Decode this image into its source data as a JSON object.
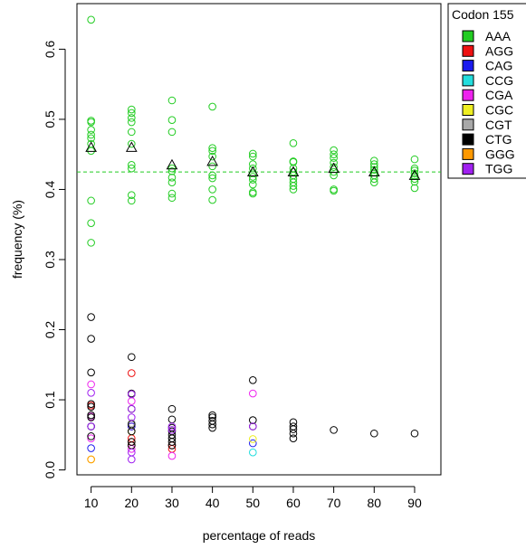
{
  "chart_data": {
    "type": "scatter",
    "xlabel": "percentage of reads",
    "ylabel": "frequency (%)",
    "xlim": [
      6.5,
      96.5
    ],
    "ylim": [
      -0.007,
      0.665
    ],
    "x_ticks": [
      10,
      20,
      30,
      40,
      50,
      60,
      70,
      80,
      90
    ],
    "y_ticks": [
      0.0,
      0.1,
      0.2,
      0.3,
      0.4,
      0.5,
      0.6
    ],
    "y_tick_labels": [
      "0.0",
      "0.1",
      "0.2",
      "0.3",
      "0.4",
      "0.5",
      "0.6"
    ],
    "grid": false,
    "legend": {
      "title": "Codon 155",
      "placement": "top-right-outside",
      "entries": [
        {
          "label": "AAA",
          "color": "#22cc22"
        },
        {
          "label": "AGG",
          "color": "#ee1111"
        },
        {
          "label": "CAG",
          "color": "#1a1aee"
        },
        {
          "label": "CCG",
          "color": "#22dddd"
        },
        {
          "label": "CGA",
          "color": "#ee22ee"
        },
        {
          "label": "CGC",
          "color": "#eeee22"
        },
        {
          "label": "CGT",
          "color": "#a8a8a8"
        },
        {
          "label": "CTG",
          "color": "#000000"
        },
        {
          "label": "GGG",
          "color": "#ff9900"
        },
        {
          "label": "TGG",
          "color": "#a020f0"
        }
      ]
    },
    "reference_line": {
      "y": 0.425,
      "color": "#22cc22",
      "style": "dashed"
    },
    "series": [
      {
        "name": "AAA",
        "color": "#22cc22",
        "points": [
          [
            10,
            0.642
          ],
          [
            10,
            0.498
          ],
          [
            10,
            0.496
          ],
          [
            10,
            0.485
          ],
          [
            10,
            0.478
          ],
          [
            10,
            0.473
          ],
          [
            10,
            0.465
          ],
          [
            10,
            0.455
          ],
          [
            10,
            0.384
          ],
          [
            10,
            0.352
          ],
          [
            10,
            0.324
          ],
          [
            20,
            0.514
          ],
          [
            20,
            0.509
          ],
          [
            20,
            0.502
          ],
          [
            20,
            0.496
          ],
          [
            20,
            0.482
          ],
          [
            20,
            0.465
          ],
          [
            20,
            0.435
          ],
          [
            20,
            0.43
          ],
          [
            20,
            0.392
          ],
          [
            20,
            0.384
          ],
          [
            30,
            0.527
          ],
          [
            30,
            0.499
          ],
          [
            30,
            0.482
          ],
          [
            30,
            0.43
          ],
          [
            30,
            0.426
          ],
          [
            30,
            0.417
          ],
          [
            30,
            0.41
          ],
          [
            30,
            0.394
          ],
          [
            30,
            0.388
          ],
          [
            40,
            0.518
          ],
          [
            40,
            0.459
          ],
          [
            40,
            0.455
          ],
          [
            40,
            0.447
          ],
          [
            40,
            0.433
          ],
          [
            40,
            0.42
          ],
          [
            40,
            0.416
          ],
          [
            40,
            0.4
          ],
          [
            40,
            0.385
          ],
          [
            50,
            0.451
          ],
          [
            50,
            0.447
          ],
          [
            50,
            0.436
          ],
          [
            50,
            0.43
          ],
          [
            50,
            0.423
          ],
          [
            50,
            0.418
          ],
          [
            50,
            0.414
          ],
          [
            50,
            0.407
          ],
          [
            50,
            0.396
          ],
          [
            50,
            0.394
          ],
          [
            60,
            0.466
          ],
          [
            60,
            0.44
          ],
          [
            60,
            0.439
          ],
          [
            60,
            0.43
          ],
          [
            60,
            0.425
          ],
          [
            60,
            0.42
          ],
          [
            60,
            0.415
          ],
          [
            60,
            0.41
          ],
          [
            60,
            0.405
          ],
          [
            60,
            0.4
          ],
          [
            70,
            0.456
          ],
          [
            70,
            0.45
          ],
          [
            70,
            0.445
          ],
          [
            70,
            0.438
          ],
          [
            70,
            0.432
          ],
          [
            70,
            0.425
          ],
          [
            70,
            0.42
          ],
          [
            70,
            0.4
          ],
          [
            70,
            0.398
          ],
          [
            80,
            0.441
          ],
          [
            80,
            0.436
          ],
          [
            80,
            0.432
          ],
          [
            80,
            0.428
          ],
          [
            80,
            0.424
          ],
          [
            80,
            0.42
          ],
          [
            80,
            0.415
          ],
          [
            80,
            0.41
          ],
          [
            90,
            0.443
          ],
          [
            90,
            0.43
          ],
          [
            90,
            0.427
          ],
          [
            90,
            0.423
          ],
          [
            90,
            0.419
          ],
          [
            90,
            0.415
          ],
          [
            90,
            0.411
          ],
          [
            90,
            0.402
          ]
        ]
      },
      {
        "name": "AGG",
        "color": "#ee1111",
        "points": [
          [
            10,
            0.092
          ],
          [
            20,
            0.138
          ],
          [
            20,
            0.062
          ],
          [
            20,
            0.045
          ],
          [
            20,
            0.04
          ],
          [
            20,
            0.035
          ],
          [
            30,
            0.035
          ],
          [
            30,
            0.03
          ]
        ]
      },
      {
        "name": "CAG",
        "color": "#1a1aee",
        "points": [
          [
            10,
            0.062
          ],
          [
            10,
            0.031
          ],
          [
            20,
            0.062
          ],
          [
            50,
            0.038
          ]
        ]
      },
      {
        "name": "CCG",
        "color": "#22dddd",
        "points": [
          [
            50,
            0.025
          ]
        ]
      },
      {
        "name": "CGA",
        "color": "#ee22ee",
        "points": [
          [
            10,
            0.122
          ],
          [
            10,
            0.076
          ],
          [
            10,
            0.045
          ],
          [
            20,
            0.098
          ],
          [
            20,
            0.03
          ],
          [
            30,
            0.02
          ],
          [
            50,
            0.109
          ]
        ]
      },
      {
        "name": "CGC",
        "color": "#eeee22",
        "points": [
          [
            10,
            0.015
          ],
          [
            20,
            0.055
          ],
          [
            50,
            0.044
          ]
        ]
      },
      {
        "name": "CGT",
        "color": "#a8a8a8",
        "points": [
          [
            10,
            0.078
          ],
          [
            20,
            0.067
          ],
          [
            30,
            0.045
          ],
          [
            50,
            0.071
          ]
        ]
      },
      {
        "name": "CTG",
        "color": "#000000",
        "points": [
          [
            10,
            0.218
          ],
          [
            10,
            0.187
          ],
          [
            10,
            0.139
          ],
          [
            10,
            0.094
          ],
          [
            10,
            0.09
          ],
          [
            10,
            0.078
          ],
          [
            10,
            0.075
          ],
          [
            10,
            0.062
          ],
          [
            10,
            0.048
          ],
          [
            20,
            0.161
          ],
          [
            20,
            0.109
          ],
          [
            20,
            0.108
          ],
          [
            20,
            0.087
          ],
          [
            20,
            0.065
          ],
          [
            20,
            0.055
          ],
          [
            20,
            0.04
          ],
          [
            20,
            0.035
          ],
          [
            30,
            0.087
          ],
          [
            30,
            0.072
          ],
          [
            30,
            0.06
          ],
          [
            30,
            0.055
          ],
          [
            30,
            0.05
          ],
          [
            30,
            0.045
          ],
          [
            30,
            0.04
          ],
          [
            30,
            0.035
          ],
          [
            40,
            0.078
          ],
          [
            40,
            0.075
          ],
          [
            40,
            0.07
          ],
          [
            40,
            0.065
          ],
          [
            40,
            0.06
          ],
          [
            50,
            0.128
          ],
          [
            50,
            0.071
          ],
          [
            50,
            0.062
          ],
          [
            60,
            0.068
          ],
          [
            60,
            0.062
          ],
          [
            60,
            0.058
          ],
          [
            60,
            0.052
          ],
          [
            60,
            0.045
          ],
          [
            70,
            0.057
          ],
          [
            80,
            0.052
          ],
          [
            90,
            0.052
          ]
        ]
      },
      {
        "name": "GGG",
        "color": "#ff9900",
        "points": [
          [
            10,
            0.015
          ]
        ]
      },
      {
        "name": "TGG",
        "color": "#a020f0",
        "points": [
          [
            10,
            0.11
          ],
          [
            10,
            0.062
          ],
          [
            20,
            0.108
          ],
          [
            20,
            0.087
          ],
          [
            20,
            0.075
          ],
          [
            20,
            0.025
          ],
          [
            20,
            0.015
          ],
          [
            30,
            0.062
          ],
          [
            30,
            0.057
          ],
          [
            50,
            0.062
          ]
        ]
      }
    ],
    "mean_markers": {
      "shape": "triangle",
      "color": "#000000",
      "points": [
        [
          10,
          0.46
        ],
        [
          20,
          0.46
        ],
        [
          30,
          0.435
        ],
        [
          40,
          0.44
        ],
        [
          50,
          0.425
        ],
        [
          60,
          0.425
        ],
        [
          70,
          0.43
        ],
        [
          80,
          0.425
        ],
        [
          90,
          0.42
        ]
      ]
    }
  }
}
